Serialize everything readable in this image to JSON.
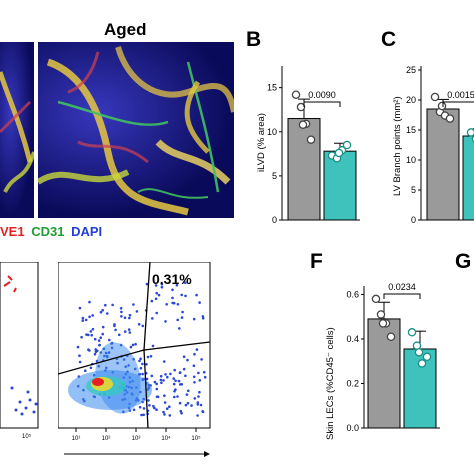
{
  "panel_a": {
    "condition_label": "Aged",
    "stain_legend": [
      {
        "text": "VE1",
        "color": "#e62020"
      },
      {
        "text": "CD31",
        "color": "#1f9e2f"
      },
      {
        "text": "DAPI",
        "color": "#1f3fd8"
      }
    ]
  },
  "panel_b": {
    "letter": "B",
    "ylabel": "iLVD (% area)",
    "pvalue": "0.0090",
    "yticks": [
      "0",
      "5",
      "10",
      "15"
    ]
  },
  "panel_c": {
    "letter": "C",
    "ylabel": "LV Branch points (mm²)",
    "pvalue": "0.0015",
    "yticks": [
      "0",
      "5",
      "10",
      "15",
      "20",
      "25"
    ]
  },
  "panel_e": {
    "percent_label": "0.31%",
    "axis_ticks": [
      "10¹",
      "10²",
      "10³",
      "10⁴",
      "10⁵"
    ]
  },
  "panel_f": {
    "letter": "F",
    "ylabel": "Skin LECs (%CD45⁻ cells)",
    "pvalue": "0.0234",
    "yticks": [
      "0.0",
      "0.2",
      "0.4",
      "0.6"
    ]
  },
  "panel_g": {
    "letter": "G"
  },
  "chart_data": [
    {
      "type": "bar",
      "categories": [
        "",
        ""
      ],
      "values": [
        11.5,
        7.8
      ],
      "errors": [
        2.2,
        0.9
      ],
      "points": [
        [
          14.2,
          12.8,
          10.9,
          9.1,
          10.8
        ],
        [
          7.3,
          7.0,
          7.9,
          8.5,
          7.6
        ]
      ],
      "ylabel": "iLVD (% area)",
      "ylim": [
        0,
        17
      ],
      "colors": [
        "#9a9a9a",
        "#3fc2bb"
      ]
    },
    {
      "type": "bar",
      "categories": [
        "",
        ""
      ],
      "values": [
        18.5,
        14.0
      ],
      "errors": [
        1.6,
        1.2
      ],
      "points": [
        [
          20.5,
          18.0,
          17.4,
          16.9,
          19.0
        ],
        [
          14.6,
          13.5,
          15.0,
          13.8,
          14.3
        ]
      ],
      "ylabel": "LV Branch points (mm²)",
      "ylim": [
        0,
        25
      ],
      "colors": [
        "#9a9a9a",
        "#3fc2bb"
      ]
    },
    {
      "type": "bar",
      "categories": [
        "",
        ""
      ],
      "values": [
        0.49,
        0.355
      ],
      "errors": [
        0.075,
        0.08
      ],
      "points": [
        [
          0.58,
          0.51,
          0.47,
          0.41,
          0.47
        ],
        [
          0.43,
          0.37,
          0.29,
          0.32,
          0.34
        ]
      ],
      "ylabel": "Skin LECs (%CD45⁻ cells)",
      "ylim": [
        0,
        0.62
      ],
      "colors": [
        "#9a9a9a",
        "#3fc2bb"
      ]
    }
  ]
}
